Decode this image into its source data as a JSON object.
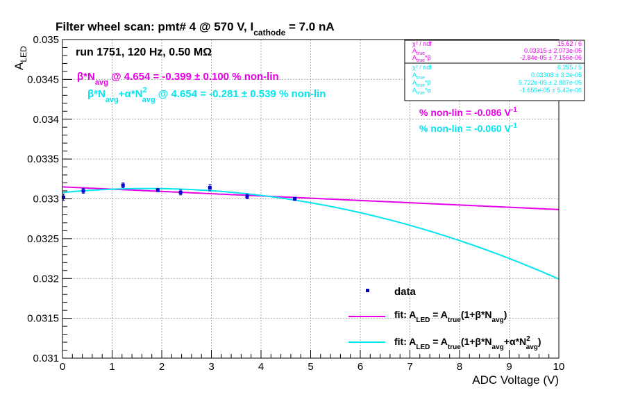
{
  "colors": {
    "data": "#0000cc",
    "fit1": "#e600e6",
    "fit2": "#00e5ee",
    "frame": "#000000",
    "grid": "#aaaaaa"
  },
  "chart_data": {
    "type": "scatter",
    "title": {
      "main": "Filter wheel scan: pmt#   4 @   570 V, I",
      "sub": "cathode",
      "tail": " = 7.0 nA"
    },
    "xlabel": "ADC Voltage (V)",
    "ylabel": {
      "main": "A",
      "sub": "LED"
    },
    "xlim": [
      0,
      10
    ],
    "ylim": [
      0.031,
      0.035
    ],
    "xticks": [
      "0",
      "1",
      "2",
      "3",
      "4",
      "5",
      "6",
      "7",
      "8",
      "9",
      "10"
    ],
    "yticks": [
      "0.031",
      "0.0315",
      "0.032",
      "0.0325",
      "0.033",
      "0.0335",
      "0.034",
      "0.0345",
      "0.035"
    ],
    "grid": true,
    "run_label": "run 1751, 120 Hz, 0.50 MΩ",
    "data_points": [
      {
        "x": 0.02,
        "y": 0.03302,
        "err": 4e-05
      },
      {
        "x": 0.42,
        "y": 0.0331,
        "err": 3e-05
      },
      {
        "x": 1.22,
        "y": 0.03317,
        "err": 3e-05
      },
      {
        "x": 1.92,
        "y": 0.03311,
        "err": 2e-05
      },
      {
        "x": 2.38,
        "y": 0.03308,
        "err": 3e-05
      },
      {
        "x": 2.97,
        "y": 0.03314,
        "err": 4e-05
      },
      {
        "x": 3.72,
        "y": 0.03303,
        "err": 3e-05
      },
      {
        "x": 4.68,
        "y": 0.033,
        "err": 2e-05
      }
    ],
    "fit_linear": {
      "A_true": 0.03315,
      "beta": -2.84e-05
    },
    "fit_quadratic": {
      "A_true": 0.03308,
      "beta": 5.722e-05,
      "alpha": -1.659e-05
    },
    "annotations": {
      "nonlin1": {
        "sym": "β*N",
        "sub": "avg",
        "tail": " @ 4.654 = -0.399 ± 0.100 % non-lin"
      },
      "nonlin2": {
        "sym": "β*N",
        "sub1": "avg",
        "mid": "+α*N",
        "sup": "2",
        "sub2": "avg",
        "tail": " @ 4.654 = -0.281 ± 0.539 % non-lin"
      },
      "slope1": "% non-lin = -0.086 V",
      "slope2": "% non-lin = -0.060 V",
      "slope_sup": "-1"
    },
    "stats_box1": [
      {
        "label": "χ² / ndf",
        "value": "15.62 / 6"
      },
      {
        "label": "A_true",
        "value": "0.03315 ± 2.073e-05"
      },
      {
        "label": "A_true*β",
        "value": "-2.84e-05 ± 7.156e-06"
      }
    ],
    "stats_box2": [
      {
        "label": "χ² / ndf",
        "value": "6.255 / 5"
      },
      {
        "label": "A_true",
        "value": "0.03308 ± 3.2e-05"
      },
      {
        "label": "A_true*β",
        "value": "5.722e-05 ± 2.887e-05"
      },
      {
        "label": "A_true*α",
        "value": "-1.659e-05 ± 5.42e-06"
      }
    ],
    "legend": {
      "data": "data",
      "fit1": {
        "a": "fit: A",
        "s1": "LED",
        "b": " = A",
        "s2": "true",
        "c": "(1+β*N",
        "s3": "avg",
        "d": ")"
      },
      "fit2": {
        "a": "fit: A",
        "s1": "LED",
        "b": " = A",
        "s2": "true",
        "c": "(1+β*N",
        "s3": "avg",
        "e": "+α*N",
        "sup": "2",
        "s4": "avg",
        "d": ")"
      }
    }
  }
}
